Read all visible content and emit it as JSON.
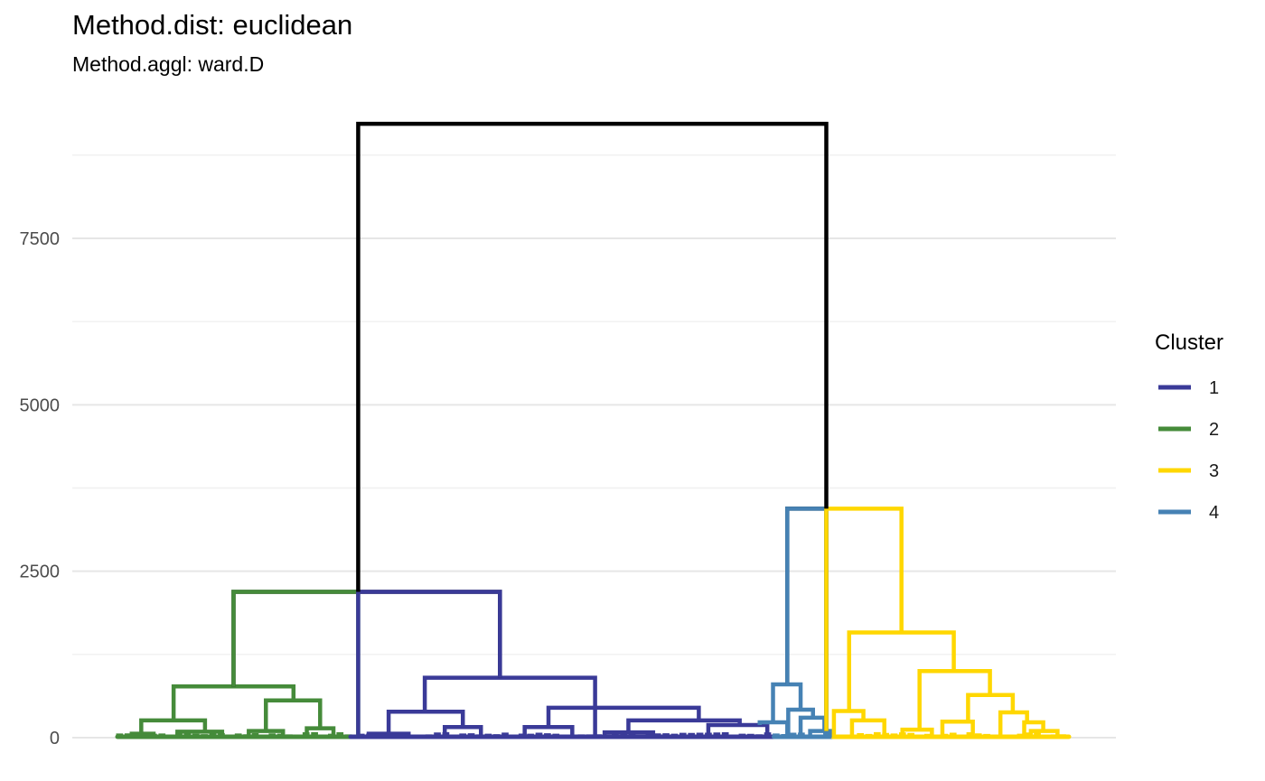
{
  "chart_data": {
    "type": "dendrogram",
    "title": "Method.dist: euclidean",
    "subtitle": "Method.aggl: ward.D",
    "xlabel": "",
    "ylabel": "",
    "ylim": [
      0,
      9600
    ],
    "y_ticks": [
      0,
      2500,
      5000,
      7500
    ],
    "grid": true,
    "legend": {
      "title": "Cluster",
      "position": "right",
      "entries": [
        {
          "label": "1",
          "color": "#3A3A98"
        },
        {
          "label": "2",
          "color": "#458B3A"
        },
        {
          "label": "3",
          "color": "#FFD700"
        },
        {
          "label": "4",
          "color": "#4682B4"
        }
      ]
    },
    "root_color": "#000000",
    "leaf_x_range": [
      0,
      100
    ],
    "merges": [
      {
        "cluster": "root",
        "height": 9220,
        "left_x": 25.3,
        "right_x": 74.5
      },
      {
        "cluster": "root",
        "height": 3440,
        "left_x": 70.4,
        "right_x": 74.5
      },
      {
        "cluster": "root",
        "height": 2190,
        "left_x": 12.2,
        "right_x": 40.2
      },
      {
        "cluster": "2",
        "height": 2190,
        "left_x": 12.2,
        "right_x": 25.3
      },
      {
        "cluster": "1",
        "height": 2190,
        "left_x": 25.3,
        "right_x": 40.2
      },
      {
        "cluster": "2",
        "height": 770,
        "left_x": 5.9,
        "right_x": 18.5
      },
      {
        "cluster": "2",
        "height": 560,
        "left_x": 15.6,
        "right_x": 21.3
      },
      {
        "cluster": "2",
        "height": 260,
        "left_x": 2.5,
        "right_x": 9.2
      },
      {
        "cluster": "2",
        "height": 140,
        "left_x": 19.9,
        "right_x": 22.7
      },
      {
        "cluster": "2",
        "height": 100,
        "left_x": 13.8,
        "right_x": 17.4
      },
      {
        "cluster": "2",
        "height": 90,
        "left_x": 6.3,
        "right_x": 11.0
      },
      {
        "cluster": "2",
        "height": 60,
        "left_x": 1.5,
        "right_x": 3.8
      },
      {
        "cluster": "1",
        "height": 900,
        "left_x": 32.3,
        "right_x": 50.2
      },
      {
        "cluster": "1",
        "height": 450,
        "left_x": 45.3,
        "right_x": 61.1
      },
      {
        "cluster": "1",
        "height": 390,
        "left_x": 28.5,
        "right_x": 36.3
      },
      {
        "cluster": "1",
        "height": 260,
        "left_x": 53.7,
        "right_x": 65.4
      },
      {
        "cluster": "1",
        "height": 190,
        "left_x": 62.1,
        "right_x": 68.3
      },
      {
        "cluster": "1",
        "height": 160,
        "left_x": 42.8,
        "right_x": 47.8
      },
      {
        "cluster": "1",
        "height": 160,
        "left_x": 34.4,
        "right_x": 38.2
      },
      {
        "cluster": "1",
        "height": 80,
        "left_x": 51.2,
        "right_x": 56.3
      },
      {
        "cluster": "1",
        "height": 60,
        "left_x": 26.4,
        "right_x": 30.6
      },
      {
        "cluster": "4",
        "height": 3440,
        "left_x": 70.4,
        "right_x": 74.5
      },
      {
        "cluster": "4",
        "height": 800,
        "left_x": 68.9,
        "right_x": 71.8
      },
      {
        "cluster": "4",
        "height": 420,
        "left_x": 70.5,
        "right_x": 73.1
      },
      {
        "cluster": "4",
        "height": 300,
        "left_x": 71.8,
        "right_x": 74.3
      },
      {
        "cluster": "4",
        "height": 230,
        "left_x": 67.5,
        "right_x": 70.4
      },
      {
        "cluster": "4",
        "height": 100,
        "left_x": 72.8,
        "right_x": 75.0
      },
      {
        "cluster": "3",
        "height": 3440,
        "left_x": 74.5,
        "right_x": 82.4
      },
      {
        "cluster": "3",
        "height": 1580,
        "left_x": 76.9,
        "right_x": 87.9
      },
      {
        "cluster": "3",
        "height": 1000,
        "left_x": 84.3,
        "right_x": 91.7
      },
      {
        "cluster": "3",
        "height": 640,
        "left_x": 89.4,
        "right_x": 94.1
      },
      {
        "cluster": "3",
        "height": 400,
        "left_x": 75.3,
        "right_x": 78.4
      },
      {
        "cluster": "3",
        "height": 380,
        "left_x": 92.8,
        "right_x": 95.6
      },
      {
        "cluster": "3",
        "height": 260,
        "left_x": 77.2,
        "right_x": 80.6
      },
      {
        "cluster": "3",
        "height": 240,
        "left_x": 86.7,
        "right_x": 89.9
      },
      {
        "cluster": "3",
        "height": 230,
        "left_x": 95.3,
        "right_x": 97.3
      },
      {
        "cluster": "3",
        "height": 120,
        "left_x": 82.5,
        "right_x": 85.6
      },
      {
        "cluster": "3",
        "height": 100,
        "left_x": 96.0,
        "right_x": 98.8
      }
    ],
    "leaf_clusters": [
      {
        "cluster": "2",
        "x_range": [
          0,
          24.5
        ],
        "leaf_count": 55
      },
      {
        "cluster": "1",
        "x_range": [
          24.5,
          69.0
        ],
        "leaf_count": 100
      },
      {
        "cluster": "4",
        "x_range": [
          69.0,
          75.2
        ],
        "leaf_count": 14
      },
      {
        "cluster": "3",
        "x_range": [
          75.2,
          100
        ],
        "leaf_count": 56
      }
    ]
  }
}
